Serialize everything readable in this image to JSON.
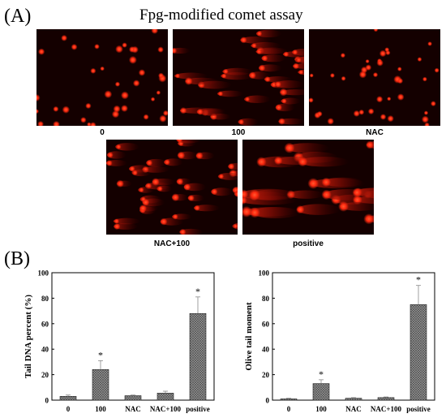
{
  "panel_a": {
    "letter": "(A)",
    "title": "Fpg-modified comet assay",
    "images": [
      {
        "label": "0",
        "style": "dots"
      },
      {
        "label": "100",
        "style": "comets"
      },
      {
        "label": "NAC",
        "style": "dots"
      },
      {
        "label": "NAC+100",
        "style": "comets-light"
      },
      {
        "label": "positive",
        "style": "comets-heavy"
      }
    ]
  },
  "panel_b": {
    "letter": "(B)"
  },
  "colors": {
    "bar_fill": "#9a9a9a",
    "bar_hatch": "#444444",
    "comet_bg": "#140000",
    "comet_core": "#ff2a10"
  },
  "chart_data": [
    {
      "type": "bar",
      "categories": [
        "0",
        "100",
        "NAC",
        "NAC+100",
        "positive"
      ],
      "values": [
        3,
        24,
        3.5,
        5.5,
        68
      ],
      "errors": [
        1,
        7,
        0.5,
        1.5,
        13
      ],
      "significant": [
        false,
        true,
        false,
        false,
        true
      ],
      "ylabel": "Tail DNA percent (%)",
      "ylim": [
        0,
        100
      ],
      "yticks": [
        0,
        20,
        40,
        60,
        80,
        100
      ],
      "marker": "*"
    },
    {
      "type": "bar",
      "categories": [
        "0",
        "100",
        "NAC",
        "NAC+100",
        "positive"
      ],
      "values": [
        1,
        13,
        1.5,
        2,
        75
      ],
      "errors": [
        0.5,
        3,
        0.5,
        0.5,
        15
      ],
      "significant": [
        false,
        true,
        false,
        false,
        true
      ],
      "ylabel": "Olive tail moment",
      "ylim": [
        0,
        100
      ],
      "yticks": [
        0,
        20,
        40,
        60,
        80,
        100
      ],
      "marker": "*"
    }
  ]
}
